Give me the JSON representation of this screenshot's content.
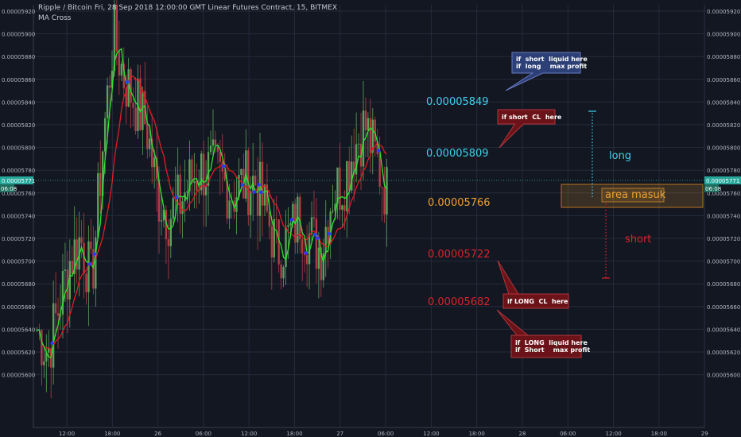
{
  "header": {
    "title": "Ripple / Bitcoin Fri, 28 Sep 2018 12:00:00 GMT Linear Futures Contract, 15, BITMEX",
    "indicator": "MA Cross"
  },
  "colors": {
    "background": "#131722",
    "grid": "#262b3b",
    "up": "#5aa45a",
    "down": "#b43c46",
    "ma_fast": "#2ee52e",
    "ma_slow": "#e21c25",
    "cross_dot": "#2a3cff",
    "price_line": "#2e9c7c",
    "cyan": "#3fd1ee",
    "orange": "#f0a030",
    "red_text": "#d8242a",
    "blue_note": "#2c3f76",
    "red_note": "#6b1318"
  },
  "chart_data": {
    "type": "candlestick",
    "ylim": [
      5.6e-05,
      5.92e-05
    ],
    "y_ticks": [
      "0.00005920",
      "0.00005900",
      "0.00005880",
      "0.00005860",
      "0.00005840",
      "0.00005820",
      "0.00005800",
      "0.00005780",
      "0.00005760",
      "0.00005740",
      "0.00005720",
      "0.00005700",
      "0.00005680",
      "0.00005660",
      "0.00005640",
      "0.00005620",
      "0.00005600"
    ],
    "x_ticks": [
      "12:00",
      "18:00",
      "26",
      "06:00",
      "12:00",
      "18:00",
      "27",
      "06:00",
      "12:00",
      "18:00",
      "28",
      "06:00",
      "12:00",
      "18:00",
      "29"
    ],
    "last_price": "0.00005771",
    "last_price_countdown": "06:08",
    "candle_anchors": [
      [
        5.64e-05,
        5.62e-05,
        5.66e-05,
        5.7e-05,
        5.72e-05,
        5.68e-05,
        5.8e-05,
        5.9e-05,
        5.86e-05,
        5.84e-05,
        5.82e-05,
        5.76e-05,
        5.74e-05,
        5.75e-05,
        5.77e-05,
        5.78e-05,
        5.78e-05,
        5.77e-05,
        5.76e-05,
        5.77e-05,
        5.77e-05,
        5.74e-05,
        5.71e-05,
        5.72e-05,
        5.74e-05,
        5.72e-05,
        5.71e-05,
        5.76e-05,
        5.77e-05,
        5.8e-05,
        5.82e-05,
        5.79e-05,
        5.76e-05
      ]
    ],
    "annotations": {
      "levels": [
        {
          "value": "0.00005849",
          "color": "cyan"
        },
        {
          "value": "0.00005809",
          "color": "cyan"
        },
        {
          "value": "0.00005766",
          "color": "orange"
        },
        {
          "value": "0.00005722",
          "color": "red"
        },
        {
          "value": "0.00005682",
          "color": "red"
        }
      ],
      "notes": [
        {
          "text": "if  short  liquid here\nif  long    max profit",
          "style": "blue"
        },
        {
          "text": "if short  CL  here",
          "style": "red"
        },
        {
          "text": "if LONG  CL  here",
          "style": "red"
        },
        {
          "text": "if  LONG  liquid here\nif  Short    max profit",
          "style": "red"
        }
      ],
      "long_label": "long",
      "short_label": "short",
      "entry_label": "area masuk"
    }
  }
}
